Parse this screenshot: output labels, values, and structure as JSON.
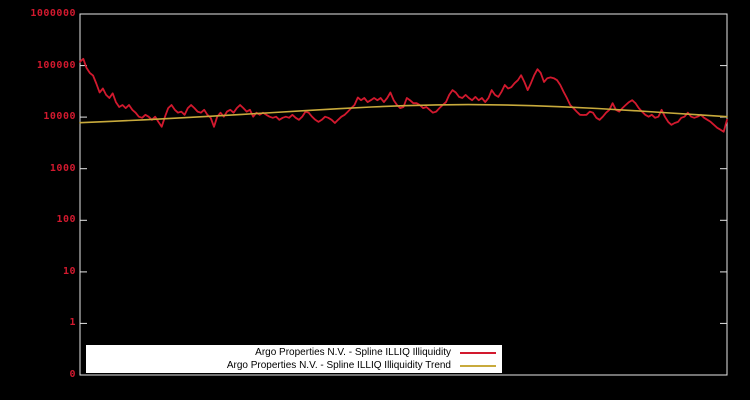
{
  "window": {
    "background_color": "#000000"
  },
  "chart_data": {
    "type": "line",
    "axes_border_color": "#e6e6e6",
    "x_axis": {
      "tick_labels": []
    },
    "y_axis": {
      "scale": "log",
      "top_value": 1000000,
      "decades": 7,
      "tick_labels": [
        "1000000",
        "100000",
        "10000",
        "1000",
        "100",
        "10",
        "1",
        "0"
      ],
      "label_color": "#d2192e"
    },
    "legend": {
      "position": "inside-bottom-left",
      "background_color": "#ffffff",
      "text_color": "#000000",
      "items": [
        {
          "label": "Argo Properties N.V. - Spline ILLIQ Illiquidity",
          "color": "#d2192e"
        },
        {
          "label": "Argo Properties N.V. - Spline ILLIQ Illiquidity Trend",
          "color": "#c8aa3c"
        }
      ]
    },
    "series": [
      {
        "name": "Argo Properties N.V. - Spline ILLIQ Illiquidity",
        "color": "#d2192e",
        "line_width": 1.8,
        "values": [
          119000,
          135000,
          90000,
          72000,
          64000,
          45000,
          30000,
          36000,
          27000,
          23500,
          29000,
          19600,
          15700,
          17200,
          15000,
          17200,
          13900,
          12200,
          10200,
          9700,
          11100,
          10200,
          8900,
          10200,
          8100,
          6500,
          10200,
          15000,
          17200,
          13900,
          12200,
          12800,
          11100,
          15000,
          17200,
          15000,
          12800,
          12200,
          13900,
          11100,
          9700,
          6500,
          10200,
          12200,
          10200,
          12800,
          13900,
          12200,
          15000,
          17200,
          15000,
          12800,
          13900,
          10200,
          12200,
          11100,
          12200,
          11100,
          10200,
          9700,
          10200,
          8900,
          9700,
          10200,
          9700,
          11100,
          9700,
          8900,
          10200,
          12800,
          12200,
          10200,
          8900,
          8100,
          8900,
          10200,
          9700,
          8900,
          7700,
          8900,
          10200,
          11100,
          12800,
          15000,
          17200,
          24000,
          21300,
          23500,
          19600,
          21300,
          23500,
          21300,
          23500,
          19600,
          23500,
          30000,
          21300,
          17200,
          15000,
          15700,
          23500,
          21300,
          18600,
          18600,
          17200,
          15000,
          15700,
          13900,
          12200,
          12800,
          15000,
          17200,
          19600,
          27000,
          33500,
          30000,
          24700,
          23500,
          27000,
          23500,
          21300,
          24700,
          21300,
          23500,
          19600,
          23500,
          33500,
          27000,
          24700,
          31000,
          42000,
          36000,
          38000,
          45500,
          52000,
          65000,
          48000,
          33500,
          45500,
          65000,
          85000,
          72000,
          48000,
          57000,
          59000,
          57000,
          52000,
          42000,
          31000,
          23500,
          17200,
          15000,
          12800,
          11100,
          11000,
          11100,
          12800,
          12200,
          9700,
          8900,
          10200,
          12200,
          13900,
          18600,
          13900,
          12800,
          15000,
          17200,
          19600,
          21300,
          18600,
          15000,
          12800,
          11100,
          10200,
          11100,
          9700,
          10200,
          13900,
          10200,
          8100,
          7100,
          7700,
          8100,
          9700,
          10200,
          12200,
          10200,
          9700,
          10200,
          11100,
          9700,
          8900,
          8100,
          7100,
          6200,
          5700,
          5200,
          8900
        ]
      },
      {
        "name": "Argo Properties N.V. - Spline ILLIQ Illiquidity Trend",
        "color": "#c8aa3c",
        "line_width": 1.6,
        "values": [
          7800,
          8300,
          8900,
          9600,
          10400,
          11300,
          12300,
          13400,
          14600,
          15700,
          16700,
          17300,
          17500,
          17300,
          16700,
          15800,
          14700,
          13500,
          12300,
          11200,
          10200
        ]
      }
    ]
  }
}
